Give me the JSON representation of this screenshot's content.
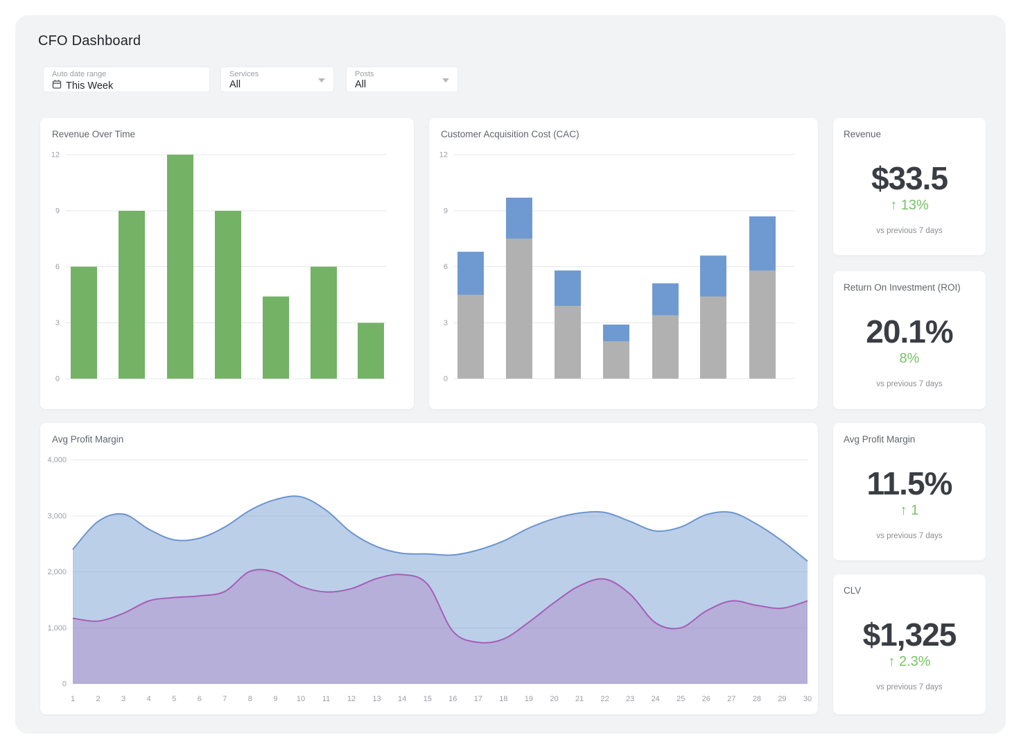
{
  "page": {
    "title": "CFO Dashboard"
  },
  "filters": [
    {
      "label": "Auto date range",
      "value": "This Week"
    },
    {
      "label": "Services",
      "value": "All"
    },
    {
      "label": "Posts",
      "value": "All"
    }
  ],
  "colors": {
    "panel_bg": "#f2f3f5",
    "card_bg": "#ffffff",
    "accent_green_bar": "#74b266",
    "accent_green_text": "#77c167",
    "stack_gray": "#b1b1b1",
    "stack_blue": "#6f9ad1",
    "area_blue_line": "#6b94ce",
    "area_purple_line": "#a55eb5",
    "grid_line": "#e6e7ea",
    "tick_text": "#9a9da3",
    "kpi_value_text": "#3a3d43"
  },
  "chart_data": [
    {
      "type": "bar",
      "title": "Revenue Over Time",
      "categories": [
        "",
        "",
        "",
        "",
        "",
        "",
        ""
      ],
      "values": [
        6,
        9,
        12,
        9,
        4.4,
        6,
        3
      ],
      "bar_color": "#74b266",
      "ylim": [
        0,
        12
      ],
      "yticks": [
        0,
        3,
        6,
        9,
        12
      ],
      "ytick_labels": [
        "0",
        "3",
        "6",
        "9",
        "12"
      ],
      "grid": true,
      "legend": "none",
      "xlabel": "",
      "ylabel": ""
    },
    {
      "type": "bar",
      "stacked": true,
      "title": "Customer Acquisition Cost (CAC)",
      "categories": [
        "",
        "",
        "",
        "",
        "",
        "",
        ""
      ],
      "series": [
        {
          "name": "base-segment",
          "color": "#b1b1b1",
          "values": [
            4.5,
            7.5,
            3.9,
            2.0,
            3.4,
            4.4,
            5.8
          ]
        },
        {
          "name": "top-segment",
          "color": "#6f9ad1",
          "values": [
            2.3,
            2.2,
            1.9,
            0.9,
            1.7,
            2.2,
            2.9
          ]
        }
      ],
      "totals": [
        6.8,
        9.7,
        5.8,
        2.9,
        5.1,
        6.6,
        8.7
      ],
      "ylim": [
        0,
        12
      ],
      "yticks": [
        0,
        3,
        6,
        9,
        12
      ],
      "ytick_labels": [
        "0",
        "3",
        "6",
        "9",
        "12"
      ],
      "grid": true,
      "legend": "none"
    },
    {
      "type": "area",
      "title": "Avg Profit Margin",
      "x": [
        1,
        2,
        3,
        4,
        5,
        6,
        7,
        8,
        9,
        10,
        11,
        12,
        13,
        14,
        15,
        16,
        17,
        18,
        19,
        20,
        21,
        22,
        23,
        24,
        25,
        26,
        27,
        28,
        29,
        30
      ],
      "series": [
        {
          "name": "upper-band",
          "line_color": "#6b94ce",
          "fill_color": "rgba(107,148,206,0.45)",
          "values": [
            2400,
            2900,
            3030,
            2760,
            2570,
            2600,
            2800,
            3100,
            3290,
            3340,
            3100,
            2700,
            2450,
            2330,
            2320,
            2300,
            2390,
            2550,
            2780,
            2950,
            3050,
            3060,
            2900,
            2730,
            2800,
            3020,
            3060,
            2850,
            2550,
            2190
          ]
        },
        {
          "name": "lower-band",
          "line_color": "#a55eb5",
          "fill_color": "rgba(164,94,181,0.28)",
          "values": [
            1170,
            1120,
            1260,
            1480,
            1540,
            1570,
            1650,
            2010,
            1990,
            1740,
            1640,
            1700,
            1880,
            1950,
            1780,
            940,
            740,
            800,
            1100,
            1450,
            1750,
            1870,
            1600,
            1090,
            1000,
            1300,
            1480,
            1400,
            1350,
            1480
          ]
        }
      ],
      "ylim": [
        0,
        4000
      ],
      "yticks": [
        0,
        1000,
        2000,
        3000,
        4000
      ],
      "ytick_labels": [
        "0",
        "1,000",
        "2,000",
        "3,000",
        "4,000"
      ],
      "grid": true,
      "legend": "none"
    }
  ],
  "kpis": [
    {
      "title": "Revenue",
      "value": "$33.5",
      "delta": "↑ 13%",
      "note": "vs previous 7 days"
    },
    {
      "title": "Return On Investment (ROI)",
      "value": "20.1%",
      "delta": "8%",
      "note": "vs previous 7 days"
    },
    {
      "title": "Avg Profit Margin",
      "value": "11.5%",
      "delta": "↑ 1",
      "note": "vs previous 7 days"
    },
    {
      "title": "CLV",
      "value": "$1,325",
      "delta": "↑ 2.3%",
      "note": "vs previous 7 days"
    }
  ]
}
